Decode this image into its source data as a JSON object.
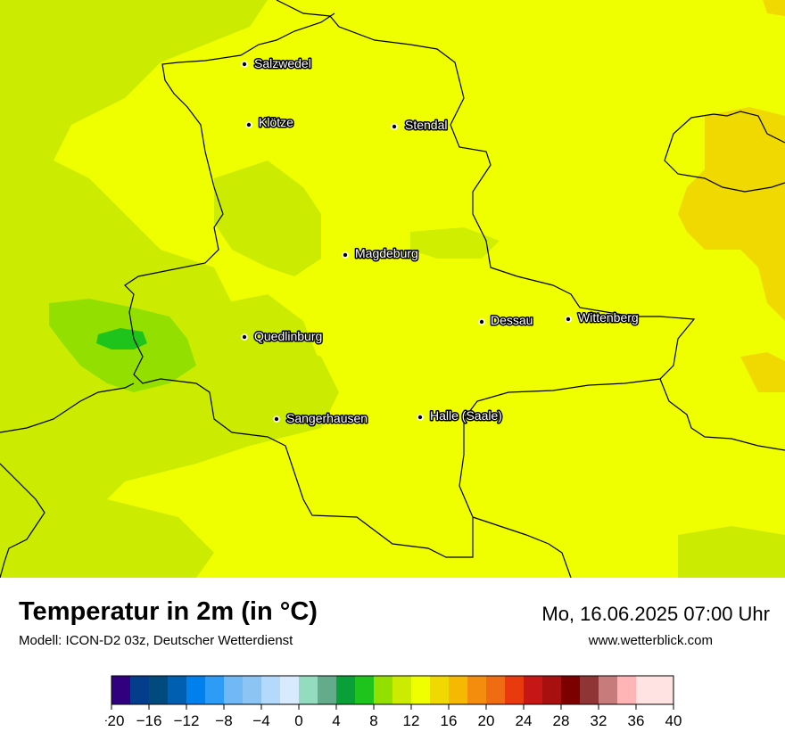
{
  "header": {
    "title": "Temperatur in 2m (in °C)",
    "subtitle": "Modell: ICON-D2 03z, Deutscher Wetterdienst",
    "datetime": "Mo, 16.06.2025 07:00 Uhr",
    "site": "www.wetterblick.com"
  },
  "map": {
    "cities": [
      {
        "id": "salzwedel",
        "name": "Salzwedel"
      },
      {
        "id": "kloetze",
        "name": "Klötze"
      },
      {
        "id": "stendal",
        "name": "Stendal"
      },
      {
        "id": "magdeburg",
        "name": "Magdeburg"
      },
      {
        "id": "dessau",
        "name": "Dessau"
      },
      {
        "id": "wittenberg",
        "name": "Wittenberg"
      },
      {
        "id": "quedlinburg",
        "name": "Quedlinburg"
      },
      {
        "id": "sangerhausen",
        "name": "Sangerhausen"
      },
      {
        "id": "halle",
        "name": "Halle (Saale)"
      }
    ],
    "dominant_range_celsius": [
      14,
      18
    ]
  },
  "legend": {
    "tick_labels": [
      "−20",
      "−16",
      "−12",
      "−8",
      "−4",
      "0",
      "4",
      "8",
      "12",
      "16",
      "20",
      "24",
      "28",
      "32",
      "36",
      "40"
    ],
    "range": [
      -20,
      40
    ],
    "step": 2,
    "colors": [
      "#30007e",
      "#033d8c",
      "#004a7d",
      "#005fb0",
      "#0080ec",
      "#2c9cf6",
      "#70b8f6",
      "#8cc5f3",
      "#b4d9fb",
      "#d8eafd",
      "#94dcc0",
      "#63ab8b",
      "#0b9f3a",
      "#1ec31c",
      "#93e000",
      "#cbec00",
      "#f0ff00",
      "#f0d900",
      "#f4b900",
      "#f48c0e",
      "#f06c12",
      "#e83a0c",
      "#c71616",
      "#a81010",
      "#7c0000",
      "#8f3535",
      "#c77c7c",
      "#ffb5b5",
      "#ffe2e2"
    ]
  }
}
